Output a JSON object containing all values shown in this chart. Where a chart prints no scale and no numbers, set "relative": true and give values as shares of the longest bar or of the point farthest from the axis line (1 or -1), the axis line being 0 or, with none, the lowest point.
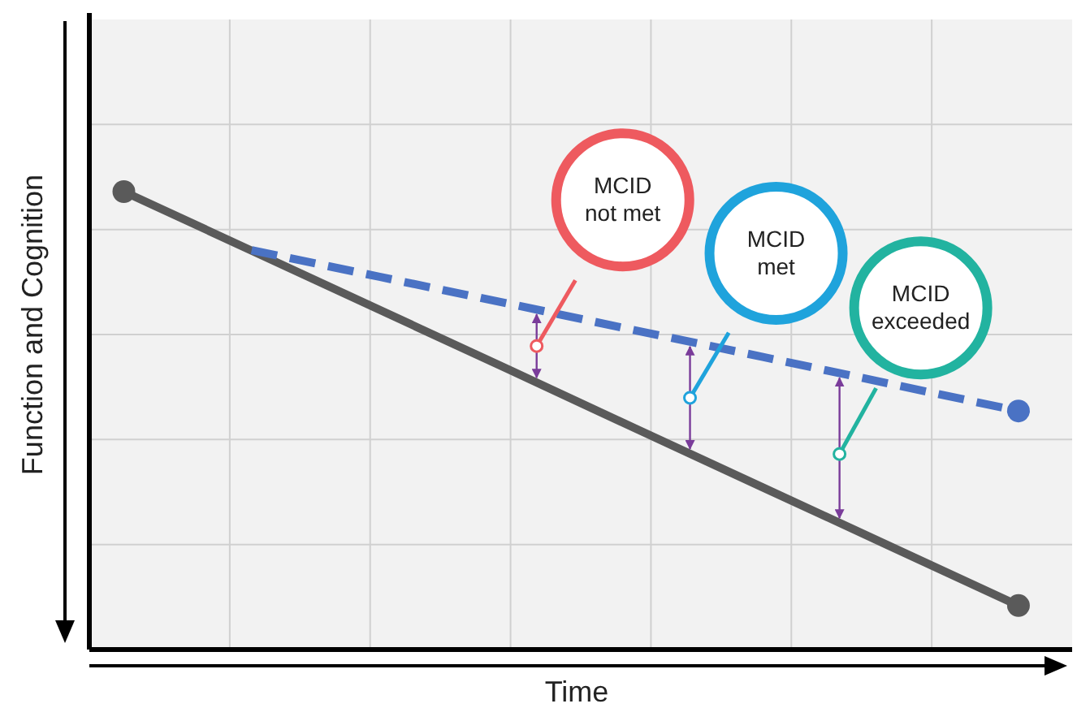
{
  "chart_data": {
    "type": "line",
    "relative": true,
    "xlabel": "Time",
    "ylabel": "Function and Cognition",
    "categories": [
      null,
      null,
      null,
      null,
      null,
      null,
      null,
      null
    ],
    "grid": true,
    "series": [
      {
        "color": "#5a5a5a",
        "values": [
          1,
          0.871,
          0.742,
          0.613,
          0.483,
          0.354,
          0.225,
          0.096
        ],
        "line_style": "solid"
      },
      {
        "color": "#4a72c4",
        "values": [
          null,
          0.872,
          0.814,
          0.756,
          0.697,
          0.639,
          0.58,
          0.521
        ],
        "line_style": "dashed"
      }
    ],
    "annotations": [
      "MCID not met",
      "MCID met",
      "MCID exceeded"
    ]
  }
}
